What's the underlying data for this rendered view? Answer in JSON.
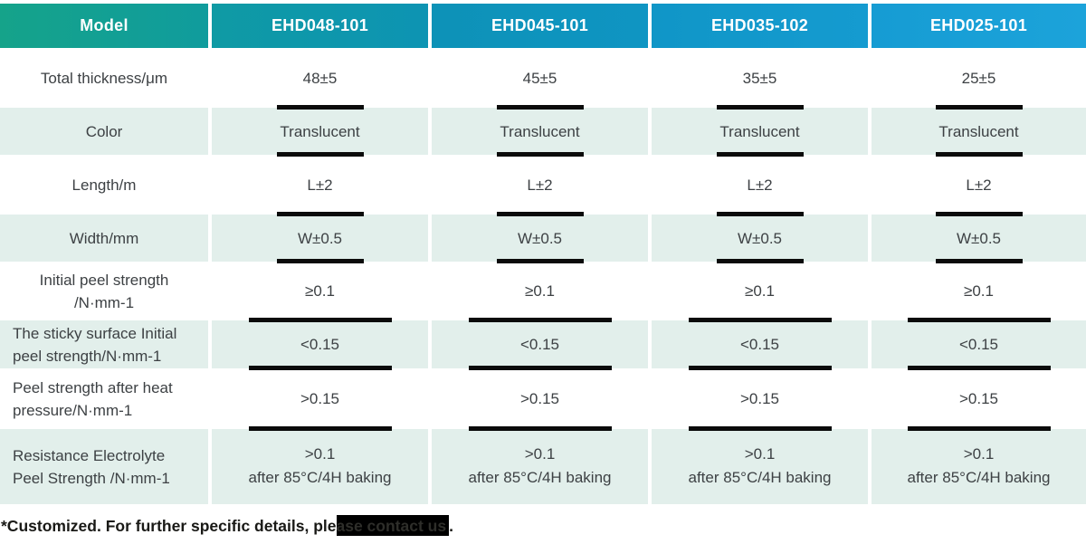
{
  "header": {
    "model_label": "Model",
    "columns": [
      "EHD048-101",
      "EHD045-101",
      "EHD035-102",
      "EHD025-101"
    ]
  },
  "rows": [
    {
      "label_lines": [
        "Total thickness/μm"
      ],
      "values": [
        "48±5",
        "45±5",
        "35±5",
        "25±5"
      ]
    },
    {
      "label_lines": [
        "Color"
      ],
      "values": [
        "Translucent",
        "Translucent",
        "Translucent",
        "Translucent"
      ]
    },
    {
      "label_lines": [
        "Length/m"
      ],
      "values": [
        "L±2",
        "L±2",
        "L±2",
        "L±2"
      ]
    },
    {
      "label_lines": [
        "Width/mm"
      ],
      "values": [
        "W±0.5",
        "W±0.5",
        "W±0.5",
        "W±0.5"
      ]
    },
    {
      "label_lines": [
        "Initial peel strength",
        "/N·mm-1"
      ],
      "values": [
        "≥0.1",
        "≥0.1",
        "≥0.1",
        "≥0.1"
      ]
    },
    {
      "label_lines": [
        "The sticky surface Initial",
        "peel strength/N·mm-1"
      ],
      "values": [
        "<0.15",
        "<0.15",
        "<0.15",
        "<0.15"
      ]
    },
    {
      "label_lines": [
        "Peel strength after heat",
        "pressure/N·mm-1"
      ],
      "values": [
        ">0.15",
        ">0.15",
        ">0.15",
        ">0.15"
      ]
    },
    {
      "label_lines": [
        "Resistance Electrolyte",
        "Peel Strength /N·mm-1"
      ],
      "values": [
        ">0.1",
        ">0.1",
        ">0.1",
        ">0.1"
      ],
      "value_note": "after 85°C/4H baking"
    }
  ],
  "footnote": {
    "part1": "*Customized. For further specific details, ple",
    "highlighted": "ase contact us",
    "part3": "."
  },
  "colors": {
    "header_gradient_start": "#15a38a",
    "header_gradient_end": "#1ca3da",
    "row_tint": "#e2efeb",
    "underline_bar": "#0b0b0b",
    "body_text": "#3d4144",
    "header_text": "#ffffff"
  }
}
